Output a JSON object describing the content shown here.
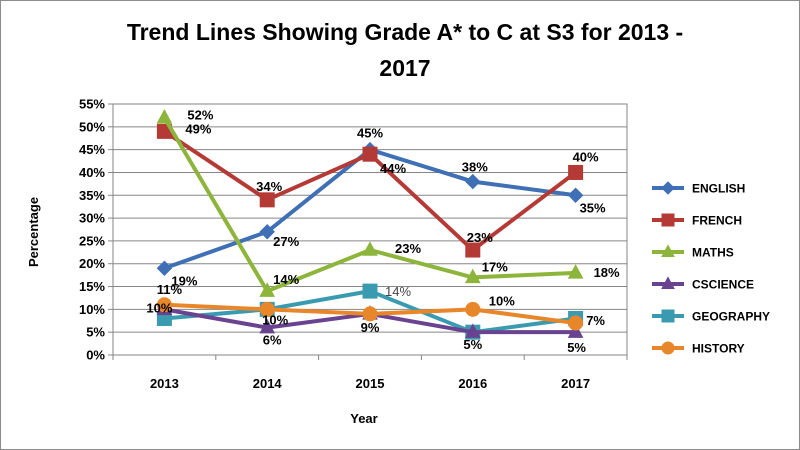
{
  "chart_data": {
    "type": "line",
    "title_line1": "Trend Lines Showing Grade A* to C at S3  for 2013 -",
    "title_line2": "2017",
    "xlabel": "Year",
    "ylabel": "Percentage",
    "categories": [
      "2013",
      "2014",
      "2015",
      "2016",
      "2017"
    ],
    "ylim": [
      0,
      55
    ],
    "y_tick_step": 5,
    "y_tick_format": "percent",
    "grid": "horizontal",
    "legend_position": "right",
    "series": [
      {
        "name": "ENGLISH",
        "color": "#3f6fb5",
        "marker": "diamond",
        "values": [
          19,
          27,
          45,
          38,
          35
        ],
        "labels": [
          "19%",
          "27%",
          "45%",
          "38%",
          "35%"
        ]
      },
      {
        "name": "FRENCH",
        "color": "#b53a35",
        "marker": "square",
        "values": [
          49,
          34,
          44,
          23,
          40
        ],
        "labels": [
          "49%",
          "34%",
          "44%",
          "23%",
          "40%"
        ]
      },
      {
        "name": "MATHS",
        "color": "#8db53c",
        "marker": "triangle",
        "values": [
          52,
          14,
          23,
          17,
          18
        ],
        "labels": [
          "52%",
          "14%",
          "23%",
          "17%",
          "18%"
        ]
      },
      {
        "name": "CSCIENCE",
        "color": "#6a4390",
        "marker": "triangle",
        "values": [
          10,
          6,
          9,
          5,
          5
        ],
        "labels": [
          "10%",
          "6%",
          "9%",
          "5%",
          "5%"
        ]
      },
      {
        "name": "GEOGRAPHY",
        "color": "#3a9bb0",
        "marker": "square",
        "values": [
          8,
          10,
          14,
          5,
          8
        ],
        "labels": [
          "",
          "10%",
          "14%",
          "",
          ""
        ]
      },
      {
        "name": "HISTORY",
        "color": "#e8862a",
        "marker": "circle",
        "values": [
          11,
          10,
          9,
          10,
          7
        ],
        "labels": [
          "11%",
          "",
          "",
          "10%",
          "7%"
        ]
      }
    ]
  }
}
